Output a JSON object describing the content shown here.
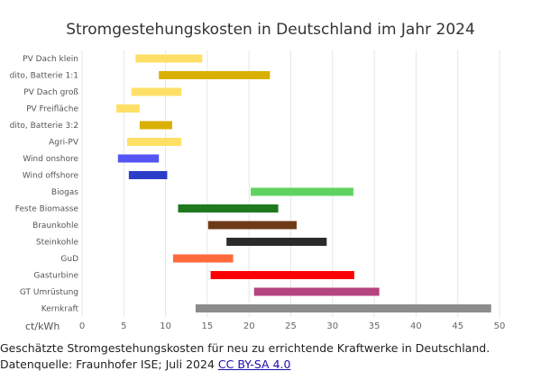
{
  "chart_data": {
    "type": "bar",
    "orientation": "horizontal-range",
    "title": "Stromgestehungskosten in Deutschland im Jahr 2024",
    "unit_label": "ct/kWh",
    "xlim": [
      0,
      50
    ],
    "x_ticks": [
      "0",
      "5",
      "10",
      "15",
      "20",
      "25",
      "30",
      "35",
      "40",
      "45",
      "50"
    ],
    "grid": "vertical",
    "categories": [
      "PV Dach klein",
      "dito, Batterie 1:1",
      "PV Dach groß",
      "PV Freifläche",
      "dito, Batterie 3:2",
      "Agri-PV",
      "Wind onshore",
      "Wind offshore",
      "Biogas",
      "Feste Biomasse",
      "Braunkohle",
      "Steinkohle",
      "GuD",
      "Gasturbine",
      "GT Umrüstung",
      "Kernkraft"
    ],
    "ranges": [
      [
        6.4,
        14.4
      ],
      [
        9.2,
        22.5
      ],
      [
        5.9,
        11.9
      ],
      [
        4.1,
        6.9
      ],
      [
        6.9,
        10.8
      ],
      [
        5.4,
        11.9
      ],
      [
        4.3,
        9.2
      ],
      [
        5.6,
        10.2
      ],
      [
        20.2,
        32.5
      ],
      [
        11.5,
        23.5
      ],
      [
        15.1,
        25.7
      ],
      [
        17.3,
        29.3
      ],
      [
        10.9,
        18.1
      ],
      [
        15.4,
        32.6
      ],
      [
        20.6,
        35.6
      ],
      [
        13.6,
        49.0
      ]
    ],
    "colors": [
      "#ffe066",
      "#d9b000",
      "#ffe066",
      "#ffe066",
      "#d9b000",
      "#ffe066",
      "#5555f5",
      "#2c3ec8",
      "#5fd35f",
      "#1f7a1f",
      "#6e3a17",
      "#2b2b2b",
      "#ff6a3d",
      "#ff0000",
      "#b5437f",
      "#8c8c8c"
    ]
  },
  "caption": {
    "text": "Geschätzte Stromgestehungskosten für neu zu errichtende Kraftwerke in Deutschland. Datenquelle: Fraunhofer ISE; Juli 2024 ",
    "license_link": "CC BY-SA 4.0"
  }
}
